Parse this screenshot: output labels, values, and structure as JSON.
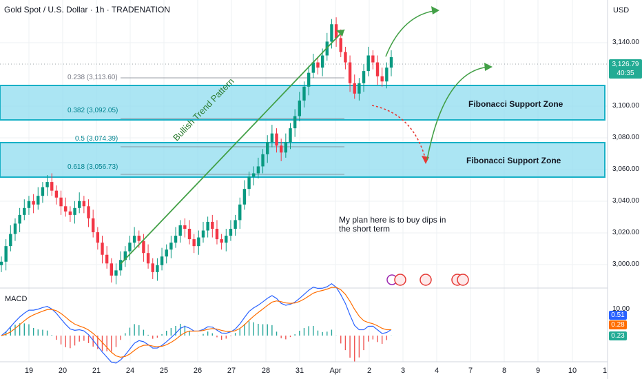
{
  "header": {
    "title": "Gold Spot / U.S. Dollar · 1h · TRADENATION",
    "currency": "USD"
  },
  "price_axis": {
    "ticks": [
      "3,140.00",
      "3,100.00",
      "3,080.00",
      "3,060.00",
      "3,040.00",
      "3,020.00",
      "3,000.00"
    ],
    "current_price": "3,126.79",
    "countdown": "40:35"
  },
  "macd_axis": {
    "tick": "10.00",
    "values": [
      "0.51",
      "0.28",
      "0.23"
    ]
  },
  "time_axis": [
    "19",
    "20",
    "21",
    "24",
    "25",
    "26",
    "27",
    "28",
    "31",
    "Apr",
    "2",
    "3",
    "4",
    "7",
    "8",
    "9",
    "10",
    "1"
  ],
  "fib_levels": [
    {
      "label": "0.238 (3,113.60)"
    },
    {
      "label": "0.382 (3,092.05)"
    },
    {
      "label": "0.5 (3,074.39)"
    },
    {
      "label": "0.618 (3,056.73)"
    }
  ],
  "annotations": {
    "trend_label": "Bullish Trend Pattern",
    "zone_upper": "Fibonacci Support Zone",
    "zone_lower": "Fibonacci Support Zone",
    "plan_line1": "My plan here is to buy dips in",
    "plan_line2": "the short term",
    "macd_label": "MACD"
  },
  "colors": {
    "up": "#089981",
    "down": "#f23645",
    "zone_fill": "#7fd9ee",
    "zone_border": "#1cb5c9",
    "arrow": "#43a047",
    "macd_blue": "#2962ff",
    "signal_orange": "#ff6d00",
    "price_tag": "#22ab94"
  },
  "chart_data": {
    "type": "candlestick",
    "symbol": "XAUUSD",
    "ylim": [
      2995,
      3160
    ],
    "close_series": [
      3009,
      3018,
      3025,
      3031,
      3036,
      3040,
      3044,
      3042,
      3047,
      3052,
      3055,
      3050,
      3046,
      3041,
      3038,
      3036,
      3040,
      3044,
      3041,
      3034,
      3026,
      3020,
      3013,
      3008,
      3001,
      3004,
      3010,
      3015,
      3020,
      3024,
      3021,
      3014,
      3008,
      3003,
      3007,
      3012,
      3016,
      3020,
      3024,
      3030,
      3028,
      3022,
      3018,
      3023,
      3027,
      3032,
      3028,
      3022,
      3020,
      3024,
      3028,
      3033,
      3042,
      3051,
      3058,
      3060,
      3064,
      3071,
      3078,
      3083,
      3076,
      3072,
      3078,
      3086,
      3093,
      3102,
      3110,
      3118,
      3124,
      3121,
      3128,
      3136,
      3146,
      3138,
      3130,
      3124,
      3112,
      3106,
      3112,
      3119,
      3128,
      3124,
      3116,
      3113,
      3121,
      3127
    ]
  }
}
